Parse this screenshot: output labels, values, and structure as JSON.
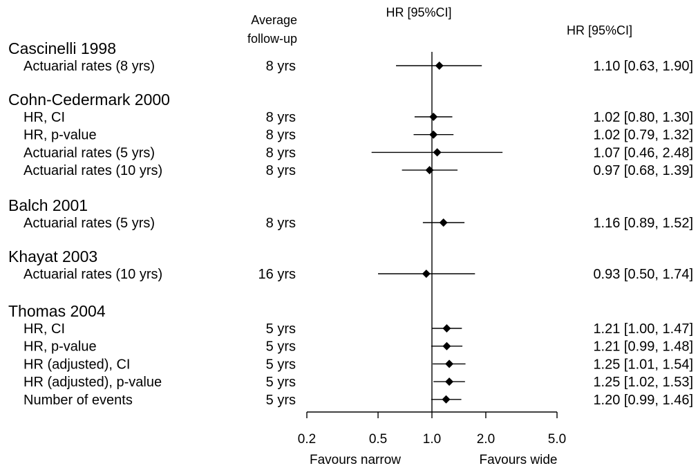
{
  "chart_data": {
    "type": "forest",
    "x_scale": "log",
    "xlim": [
      0.15,
      5.0
    ],
    "ticks": [
      "0.2",
      "0.5",
      "1.0",
      "2.0",
      "5.0"
    ],
    "tick_values": [
      0.2,
      0.5,
      1.0,
      2.0,
      5.0
    ],
    "reference_line": 1.0,
    "header_followup": [
      "Average",
      "follow-up"
    ],
    "header_center": "HR [95%CI]",
    "header_right": "HR [95%CI]",
    "favours_left": "Favours narrow",
    "favours_right": "Favours wide",
    "studies": [
      {
        "name": "Cascinelli 1998",
        "rows": [
          {
            "label": "Actuarial rates   (8 yrs)",
            "followup": "8 yrs",
            "hr": 1.1,
            "lo": 0.63,
            "hi": 1.9,
            "text": "1.10 [0.63, 1.90]"
          }
        ]
      },
      {
        "name": "Cohn-Cedermark 2000",
        "rows": [
          {
            "label": "HR, CI",
            "followup": "8 yrs",
            "hr": 1.02,
            "lo": 0.8,
            "hi": 1.3,
            "text": "1.02 [0.80, 1.30]"
          },
          {
            "label": "HR, p-value",
            "followup": "8 yrs",
            "hr": 1.02,
            "lo": 0.79,
            "hi": 1.32,
            "text": "1.02 [0.79, 1.32]"
          },
          {
            "label": "Actuarial rates   (5 yrs)",
            "followup": "8 yrs",
            "hr": 1.07,
            "lo": 0.46,
            "hi": 2.48,
            "text": "1.07 [0.46, 2.48]"
          },
          {
            "label": "Actuarial rates (10 yrs)",
            "followup": "8 yrs",
            "hr": 0.97,
            "lo": 0.68,
            "hi": 1.39,
            "text": "0.97 [0.68, 1.39]"
          }
        ]
      },
      {
        "name": "Balch 2001",
        "rows": [
          {
            "label": "Actuarial rates   (5 yrs)",
            "followup": "8 yrs",
            "hr": 1.16,
            "lo": 0.89,
            "hi": 1.52,
            "text": "1.16 [0.89, 1.52]"
          }
        ]
      },
      {
        "name": "Khayat 2003",
        "rows": [
          {
            "label": "Actuarial rates (10 yrs)",
            "followup": "16 yrs",
            "hr": 0.93,
            "lo": 0.5,
            "hi": 1.74,
            "text": "0.93 [0.50, 1.74]"
          }
        ]
      },
      {
        "name": "Thomas 2004",
        "rows": [
          {
            "label": "HR, CI",
            "followup": "5 yrs",
            "hr": 1.21,
            "lo": 1.0,
            "hi": 1.47,
            "text": "1.21 [1.00, 1.47]"
          },
          {
            "label": "HR, p-value",
            "followup": "5 yrs",
            "hr": 1.21,
            "lo": 0.99,
            "hi": 1.48,
            "text": "1.21 [0.99, 1.48]"
          },
          {
            "label": "HR (adjusted), CI",
            "followup": "5 yrs",
            "hr": 1.25,
            "lo": 1.01,
            "hi": 1.54,
            "text": "1.25 [1.01, 1.54]"
          },
          {
            "label": "HR (adjusted), p-value",
            "followup": "5 yrs",
            "hr": 1.25,
            "lo": 1.02,
            "hi": 1.53,
            "text": "1.25 [1.02, 1.53]"
          },
          {
            "label": "Number of events",
            "followup": "5 yrs",
            "hr": 1.2,
            "lo": 0.99,
            "hi": 1.46,
            "text": "1.20 [0.99, 1.46]"
          }
        ]
      }
    ]
  }
}
